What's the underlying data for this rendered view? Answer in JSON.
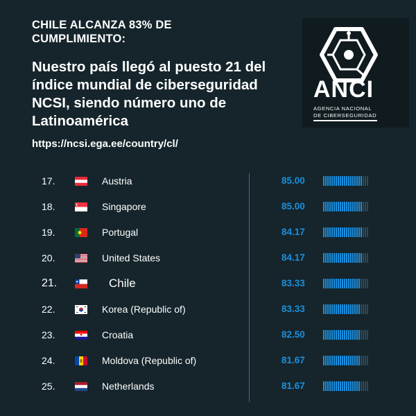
{
  "header": {
    "headline": "CHILE ALCANZA 83% DE CUMPLIMIENTO:",
    "subtitle": "Nuestro país llegó al puesto 21 del índice mundial de ciberseguridad NCSI, siendo número uno de Latinoamérica",
    "url": "https://ncsi.ega.ee/country/cl/"
  },
  "logo": {
    "word": "ANCI",
    "line1": "AGENCIA NACIONAL",
    "line2": "DE CIBERSEGURIDAD",
    "icon": "hexagon-network-icon"
  },
  "colors": {
    "background": "#15252b",
    "score": "#1a90e0",
    "bar_filled": "#1a8fe0",
    "bar_empty": "#2b4a5c",
    "divider": "#2e6fa0"
  },
  "ranking": [
    {
      "rank": "17.",
      "country": "Austria",
      "flag": "austria-flag",
      "score": "85.00",
      "fill": 0.85,
      "highlight": false
    },
    {
      "rank": "18.",
      "country": "Singapore",
      "flag": "singapore-flag",
      "score": "85.00",
      "fill": 0.85,
      "highlight": false
    },
    {
      "rank": "19.",
      "country": "Portugal",
      "flag": "portugal-flag",
      "score": "84.17",
      "fill": 0.8417,
      "highlight": false
    },
    {
      "rank": "20.",
      "country": "United States",
      "flag": "united-states-flag",
      "score": "84.17",
      "fill": 0.8417,
      "highlight": false
    },
    {
      "rank": "21.",
      "country": "Chile",
      "flag": "chile-flag",
      "score": "83.33",
      "fill": 0.8333,
      "highlight": true
    },
    {
      "rank": "22.",
      "country": "Korea (Republic of)",
      "flag": "south-korea-flag",
      "score": "83.33",
      "fill": 0.8333,
      "highlight": false
    },
    {
      "rank": "23.",
      "country": "Croatia",
      "flag": "croatia-flag",
      "score": "82.50",
      "fill": 0.825,
      "highlight": false
    },
    {
      "rank": "24.",
      "country": "Moldova (Republic of)",
      "flag": "moldova-flag",
      "score": "81.67",
      "fill": 0.8167,
      "highlight": false
    },
    {
      "rank": "25.",
      "country": "Netherlands",
      "flag": "netherlands-flag",
      "score": "81.67",
      "fill": 0.8167,
      "highlight": false
    }
  ]
}
